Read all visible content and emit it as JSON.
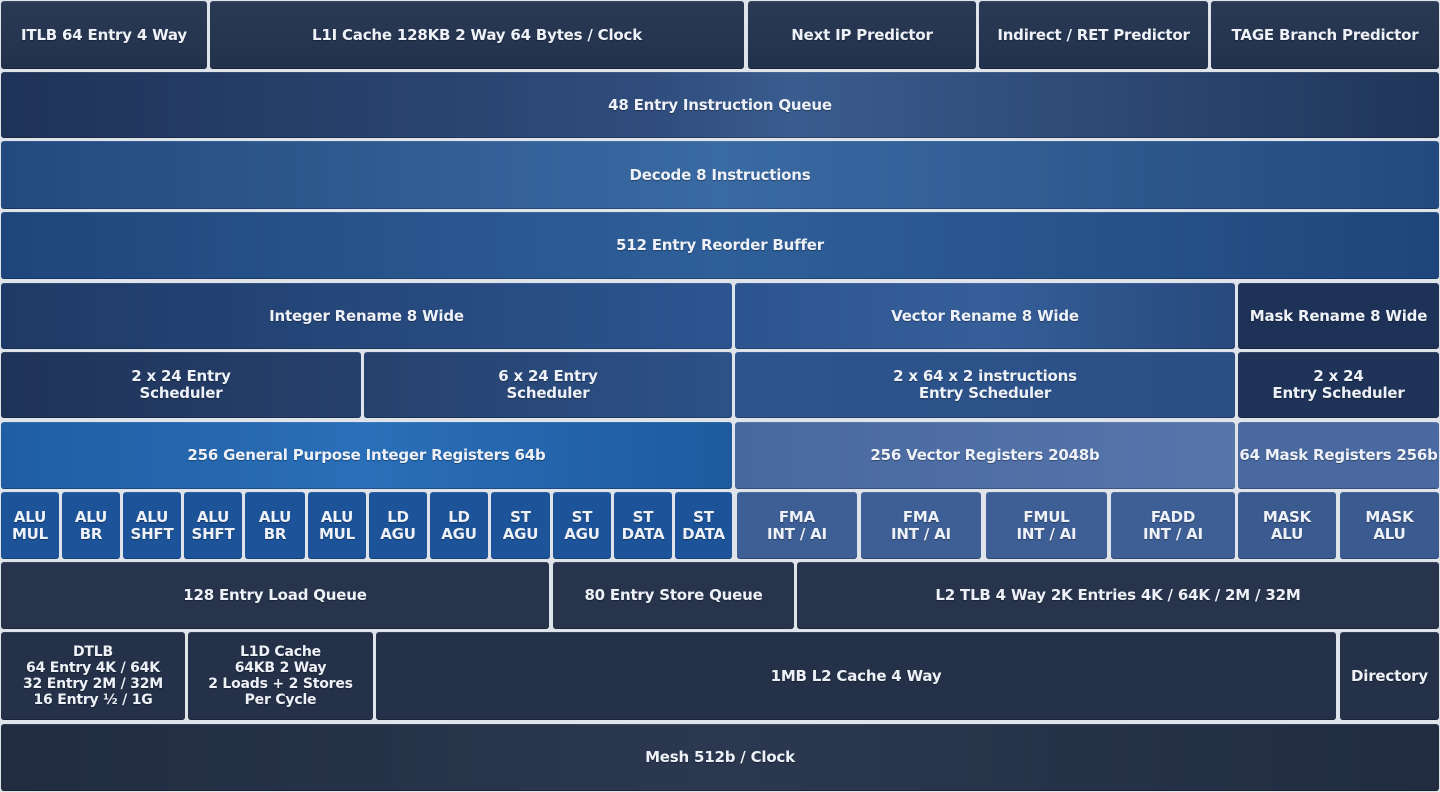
{
  "row_frontend": {
    "itlb": "ITLB 64 Entry 4 Way",
    "l1i": "L1I Cache 128KB 2 Way 64 Bytes / Clock",
    "next_ip": "Next IP Predictor",
    "indirect": "Indirect / RET Predictor",
    "tage": "TAGE Branch Predictor"
  },
  "instruction_queue": "48 Entry Instruction Queue",
  "decode": "Decode 8 Instructions",
  "reorder_buffer": "512 Entry Reorder Buffer",
  "rename": {
    "integer": "Integer Rename 8 Wide",
    "vector": "Vector Rename 8 Wide",
    "mask": "Mask Rename 8 Wide"
  },
  "scheduler": {
    "int_a": "2 x 24 Entry\nScheduler",
    "int_b": "6 x 24 Entry\nScheduler",
    "vector": "2 x 64 x 2 instructions\nEntry Scheduler",
    "mask": "2 x 24\nEntry Scheduler"
  },
  "registers": {
    "integer": "256 General Purpose Integer Registers 64b",
    "vector": "256 Vector Registers 2048b",
    "mask": "64 Mask Registers 256b"
  },
  "exec_units": {
    "integer": [
      "ALU\nMUL",
      "ALU\nBR",
      "ALU\nSHFT",
      "ALU\nSHFT",
      "ALU\nBR",
      "ALU\nMUL",
      "LD\nAGU",
      "LD\nAGU",
      "ST\nAGU",
      "ST\nAGU",
      "ST\nDATA",
      "ST\nDATA"
    ],
    "vector": [
      "FMA\nINT / AI",
      "FMA\nINT / AI",
      "FMUL\nINT / AI",
      "FADD\nINT / AI"
    ],
    "mask": [
      "MASK\nALU",
      "MASK\nALU"
    ]
  },
  "memory_queues": {
    "load": "128 Entry Load Queue",
    "store": "80 Entry Store Queue",
    "l2tlb": "L2 TLB 4 Way 2K Entries 4K / 64K / 2M / 32M"
  },
  "cache_row": {
    "dtlb": "DTLB\n64 Entry 4K / 64K\n32 Entry 2M / 32M\n16 Entry ½ / 1G",
    "l1d": "L1D Cache\n64KB 2 Way\n2 Loads + 2 Stores\nPer Cycle",
    "l2": "1MB L2 Cache 4 Way",
    "directory": "Directory"
  },
  "mesh": "Mesh 512b / Clock"
}
